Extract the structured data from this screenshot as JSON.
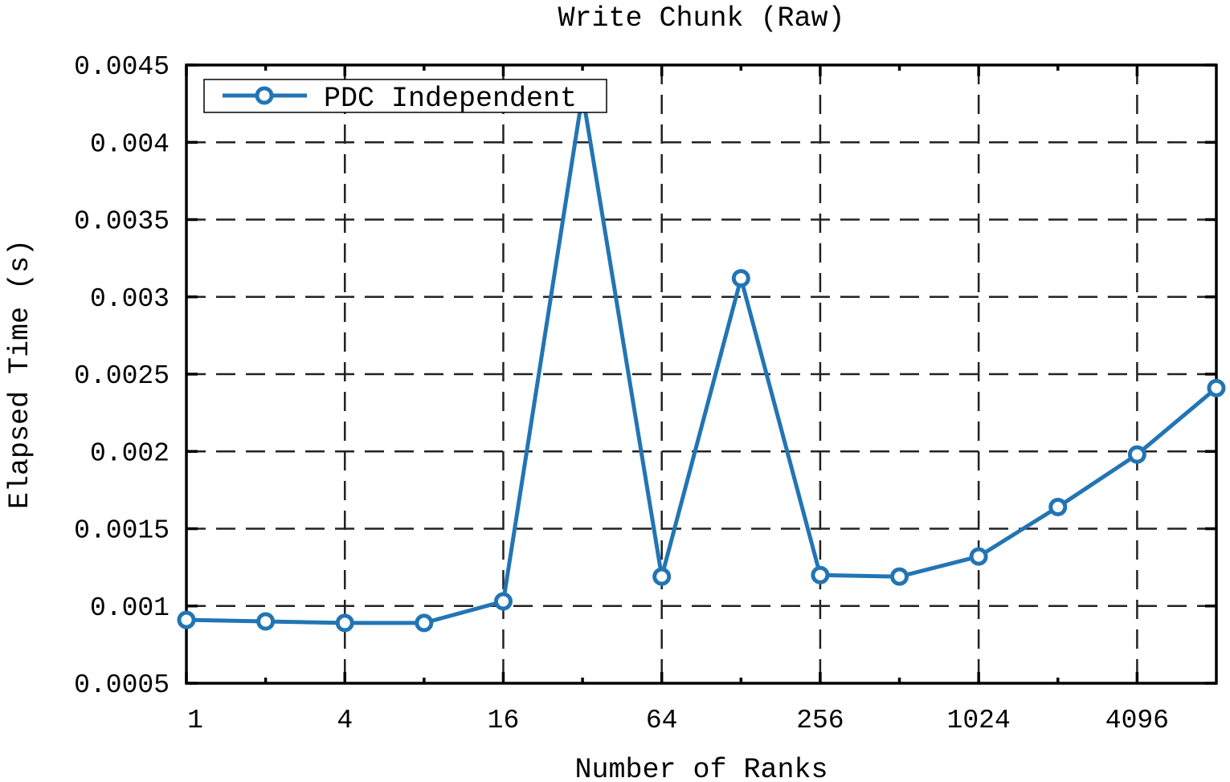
{
  "chart_data": {
    "type": "line",
    "title": "Write Chunk (Raw)",
    "xlabel": "Number of Ranks",
    "ylabel": "Elapsed Time (s)",
    "x_scale": "log2",
    "xlim": [
      1,
      8192
    ],
    "ylim": [
      0.0005,
      0.0045
    ],
    "grid": true,
    "legend_position": "top-left",
    "x_ticks": [
      1,
      4,
      16,
      64,
      256,
      1024,
      4096
    ],
    "x_tick_labels": [
      "1",
      "4",
      "16",
      "64",
      "256",
      "1024",
      "4096"
    ],
    "y_ticks": [
      0.0005,
      0.001,
      0.0015,
      0.002,
      0.0025,
      0.003,
      0.0035,
      0.004,
      0.0045
    ],
    "y_tick_labels": [
      "0.0005",
      "0.001",
      "0.0015",
      "0.002",
      "0.0025",
      "0.003",
      "0.0035",
      "0.004",
      "0.0045"
    ],
    "series": [
      {
        "name": "PDC Independent",
        "color": "#2275b4",
        "marker": "circle",
        "x": [
          1,
          2,
          4,
          8,
          16,
          32,
          64,
          128,
          256,
          512,
          1024,
          2048,
          4096,
          8192
        ],
        "y": [
          0.00091,
          0.0009,
          0.00089,
          0.00089,
          0.00103,
          0.00431,
          0.00119,
          0.00312,
          0.0012,
          0.00119,
          0.00132,
          0.00164,
          0.00198,
          0.00241
        ]
      }
    ]
  }
}
